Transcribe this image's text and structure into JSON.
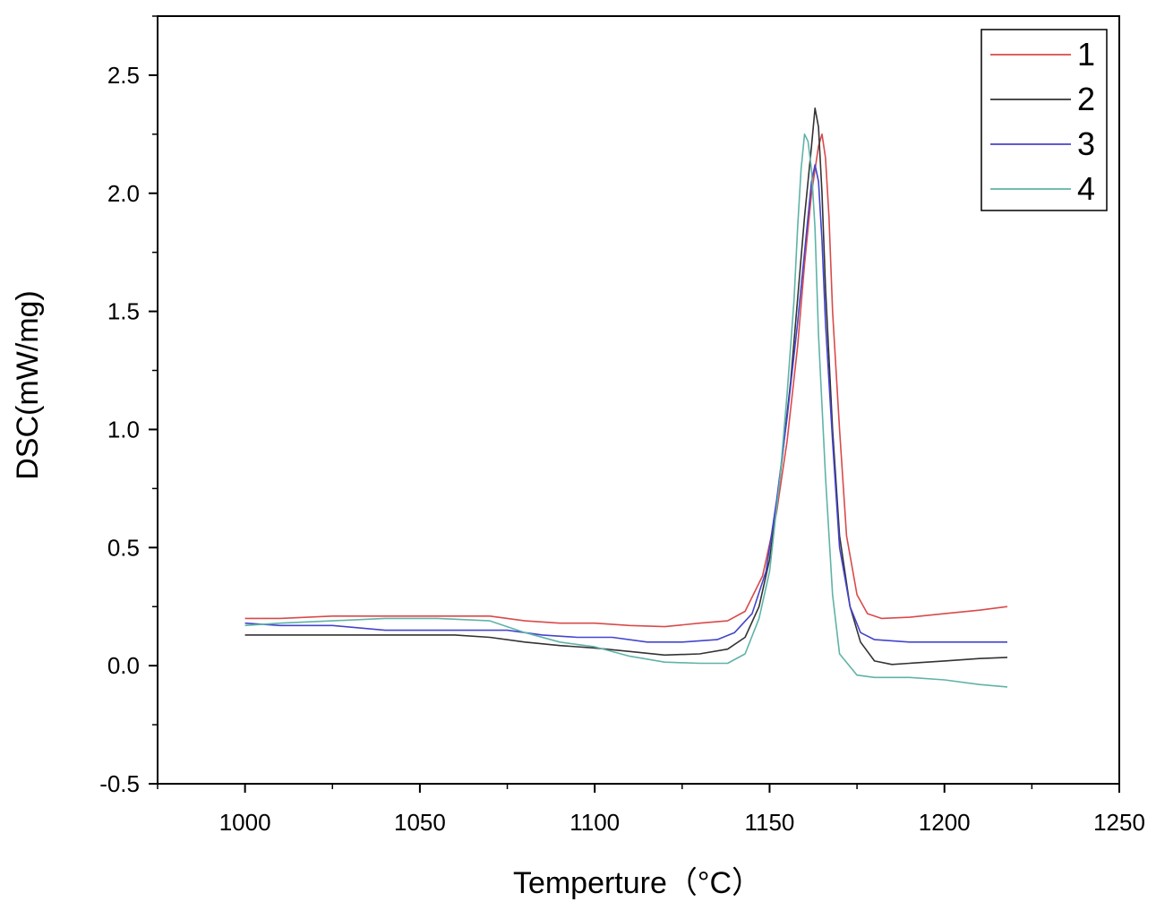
{
  "chart_data": {
    "type": "line",
    "xlabel": "Temperture（°C）",
    "ylabel": "DSC(mW/mg)",
    "xlim": [
      975,
      1250
    ],
    "ylim": [
      -0.5,
      2.75
    ],
    "xticks": [
      1000,
      1050,
      1100,
      1150,
      1200,
      1250
    ],
    "yticks": [
      -0.5,
      0.0,
      0.5,
      1.0,
      1.5,
      2.0,
      2.5
    ],
    "xtick_labels": [
      "1000",
      "1050",
      "1100",
      "1150",
      "1200",
      "1250"
    ],
    "ytick_labels": [
      "-0.5",
      "0.0",
      "0.5",
      "1.0",
      "1.5",
      "2.0",
      "2.5"
    ],
    "grid": false,
    "legend_position": "top-right",
    "series": [
      {
        "name": "1",
        "color": "#d94a4a",
        "points": [
          [
            1000,
            0.2
          ],
          [
            1010,
            0.2
          ],
          [
            1025,
            0.21
          ],
          [
            1040,
            0.21
          ],
          [
            1060,
            0.21
          ],
          [
            1070,
            0.21
          ],
          [
            1080,
            0.19
          ],
          [
            1090,
            0.18
          ],
          [
            1100,
            0.18
          ],
          [
            1110,
            0.17
          ],
          [
            1120,
            0.165
          ],
          [
            1130,
            0.18
          ],
          [
            1138,
            0.19
          ],
          [
            1143,
            0.23
          ],
          [
            1148,
            0.38
          ],
          [
            1152,
            0.65
          ],
          [
            1155,
            0.95
          ],
          [
            1158,
            1.35
          ],
          [
            1160,
            1.7
          ],
          [
            1162,
            2.0
          ],
          [
            1164,
            2.2
          ],
          [
            1165,
            2.25
          ],
          [
            1166,
            2.15
          ],
          [
            1167,
            1.9
          ],
          [
            1168,
            1.5
          ],
          [
            1170,
            1.0
          ],
          [
            1172,
            0.55
          ],
          [
            1175,
            0.3
          ],
          [
            1178,
            0.22
          ],
          [
            1182,
            0.2
          ],
          [
            1190,
            0.205
          ],
          [
            1200,
            0.22
          ],
          [
            1210,
            0.235
          ],
          [
            1218,
            0.25
          ]
        ]
      },
      {
        "name": "2",
        "color": "#333333",
        "points": [
          [
            1000,
            0.13
          ],
          [
            1020,
            0.13
          ],
          [
            1040,
            0.13
          ],
          [
            1060,
            0.13
          ],
          [
            1070,
            0.12
          ],
          [
            1080,
            0.1
          ],
          [
            1090,
            0.085
          ],
          [
            1100,
            0.075
          ],
          [
            1110,
            0.06
          ],
          [
            1120,
            0.045
          ],
          [
            1130,
            0.05
          ],
          [
            1138,
            0.07
          ],
          [
            1143,
            0.12
          ],
          [
            1147,
            0.25
          ],
          [
            1150,
            0.45
          ],
          [
            1153,
            0.8
          ],
          [
            1156,
            1.2
          ],
          [
            1158,
            1.55
          ],
          [
            1160,
            1.9
          ],
          [
            1162,
            2.2
          ],
          [
            1163,
            2.36
          ],
          [
            1164,
            2.28
          ],
          [
            1165,
            2.0
          ],
          [
            1166,
            1.6
          ],
          [
            1168,
            1.0
          ],
          [
            1170,
            0.55
          ],
          [
            1173,
            0.25
          ],
          [
            1176,
            0.1
          ],
          [
            1180,
            0.02
          ],
          [
            1185,
            0.005
          ],
          [
            1190,
            0.01
          ],
          [
            1200,
            0.02
          ],
          [
            1210,
            0.03
          ],
          [
            1218,
            0.035
          ]
        ]
      },
      {
        "name": "3",
        "color": "#4444cc",
        "points": [
          [
            1000,
            0.18
          ],
          [
            1010,
            0.17
          ],
          [
            1025,
            0.17
          ],
          [
            1040,
            0.15
          ],
          [
            1060,
            0.15
          ],
          [
            1075,
            0.15
          ],
          [
            1085,
            0.13
          ],
          [
            1095,
            0.12
          ],
          [
            1105,
            0.12
          ],
          [
            1115,
            0.1
          ],
          [
            1125,
            0.1
          ],
          [
            1135,
            0.11
          ],
          [
            1140,
            0.14
          ],
          [
            1145,
            0.22
          ],
          [
            1149,
            0.4
          ],
          [
            1152,
            0.7
          ],
          [
            1155,
            1.05
          ],
          [
            1158,
            1.45
          ],
          [
            1160,
            1.75
          ],
          [
            1162,
            2.05
          ],
          [
            1163,
            2.12
          ],
          [
            1164,
            2.05
          ],
          [
            1165,
            1.8
          ],
          [
            1166,
            1.45
          ],
          [
            1168,
            0.95
          ],
          [
            1170,
            0.5
          ],
          [
            1173,
            0.25
          ],
          [
            1176,
            0.14
          ],
          [
            1180,
            0.11
          ],
          [
            1190,
            0.1
          ],
          [
            1200,
            0.1
          ],
          [
            1210,
            0.1
          ],
          [
            1218,
            0.1
          ]
        ]
      },
      {
        "name": "4",
        "color": "#5fb3a8",
        "points": [
          [
            1000,
            0.17
          ],
          [
            1010,
            0.18
          ],
          [
            1025,
            0.19
          ],
          [
            1040,
            0.2
          ],
          [
            1055,
            0.2
          ],
          [
            1070,
            0.19
          ],
          [
            1080,
            0.14
          ],
          [
            1090,
            0.1
          ],
          [
            1100,
            0.08
          ],
          [
            1110,
            0.04
          ],
          [
            1120,
            0.015
          ],
          [
            1130,
            0.01
          ],
          [
            1138,
            0.01
          ],
          [
            1143,
            0.05
          ],
          [
            1147,
            0.2
          ],
          [
            1150,
            0.4
          ],
          [
            1153,
            0.8
          ],
          [
            1155,
            1.15
          ],
          [
            1157,
            1.55
          ],
          [
            1158,
            1.85
          ],
          [
            1159,
            2.1
          ],
          [
            1160,
            2.25
          ],
          [
            1161,
            2.22
          ],
          [
            1162,
            2.1
          ],
          [
            1163,
            1.85
          ],
          [
            1164,
            1.4
          ],
          [
            1166,
            0.8
          ],
          [
            1168,
            0.3
          ],
          [
            1170,
            0.05
          ],
          [
            1175,
            -0.04
          ],
          [
            1180,
            -0.05
          ],
          [
            1190,
            -0.05
          ],
          [
            1200,
            -0.06
          ],
          [
            1210,
            -0.08
          ],
          [
            1218,
            -0.09
          ]
        ]
      }
    ]
  }
}
